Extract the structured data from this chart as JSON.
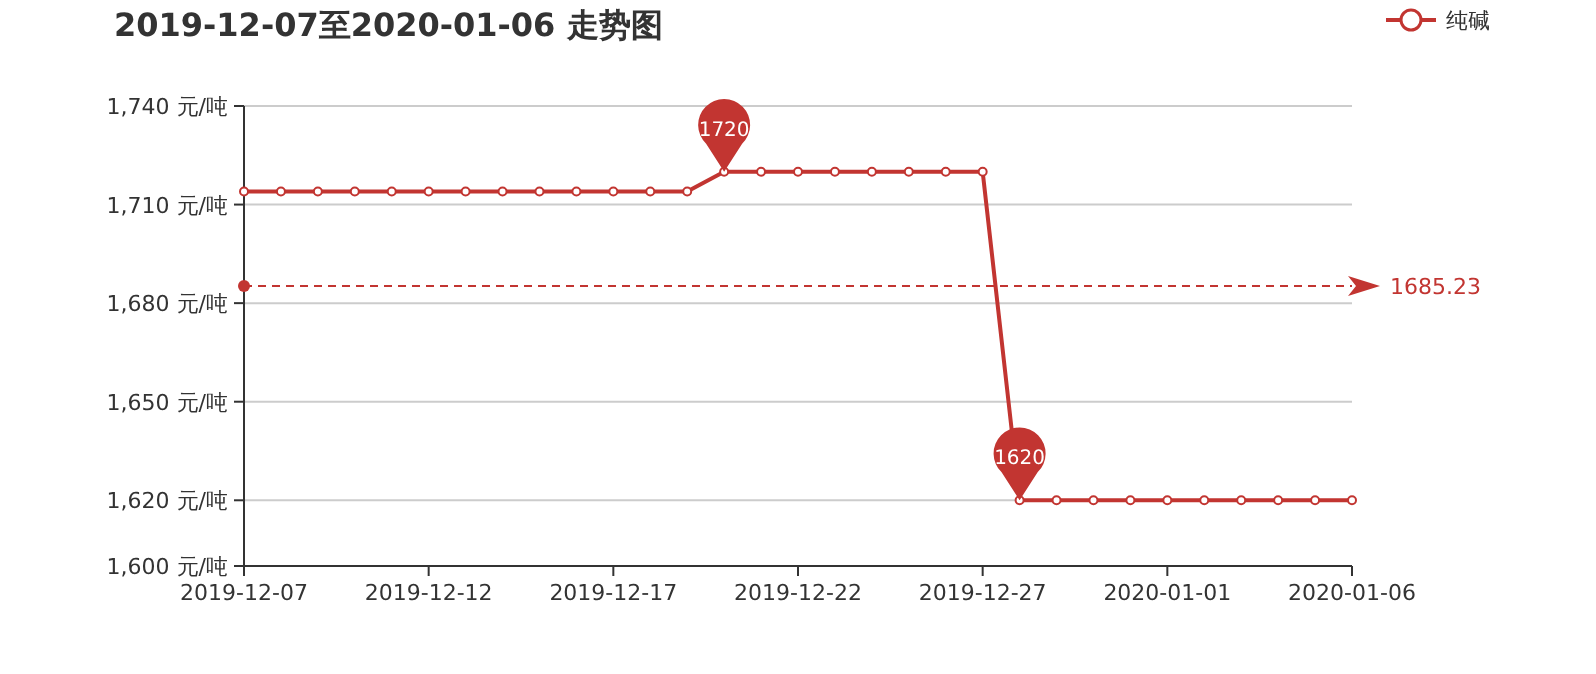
{
  "chart_data": {
    "type": "line",
    "title": "2019-12-07至2020-01-06 走势图",
    "x": [
      "2019-12-07",
      "2019-12-08",
      "2019-12-09",
      "2019-12-10",
      "2019-12-11",
      "2019-12-12",
      "2019-12-13",
      "2019-12-14",
      "2019-12-15",
      "2019-12-16",
      "2019-12-17",
      "2019-12-18",
      "2019-12-19",
      "2019-12-20",
      "2019-12-21",
      "2019-12-22",
      "2019-12-23",
      "2019-12-24",
      "2019-12-25",
      "2019-12-26",
      "2019-12-27",
      "2019-12-28",
      "2019-12-29",
      "2019-12-30",
      "2019-12-31",
      "2020-01-01",
      "2020-01-02",
      "2020-01-03",
      "2020-01-04",
      "2020-01-05",
      "2020-01-06"
    ],
    "series": [
      {
        "name": "纯碱",
        "color": "#c23531",
        "values": [
          1714,
          1714,
          1714,
          1714,
          1714,
          1714,
          1714,
          1714,
          1714,
          1714,
          1714,
          1714,
          1714,
          1720,
          1720,
          1720,
          1720,
          1720,
          1720,
          1720,
          1720,
          1620,
          1620,
          1620,
          1620,
          1620,
          1620,
          1620,
          1620,
          1620,
          1620
        ]
      }
    ],
    "xlim": [
      "2019-12-07",
      "2020-01-06"
    ],
    "xticks": [
      "2019-12-07",
      "2019-12-12",
      "2019-12-17",
      "2019-12-22",
      "2019-12-27",
      "2020-01-01",
      "2020-01-06"
    ],
    "ylim": [
      1600,
      1740
    ],
    "yticks": [
      {
        "value": 1600,
        "label": "1,600 元/吨"
      },
      {
        "value": 1620,
        "label": "1,620 元/吨"
      },
      {
        "value": 1650,
        "label": "1,650 元/吨"
      },
      {
        "value": 1680,
        "label": "1,680 元/吨"
      },
      {
        "value": 1710,
        "label": "1,710 元/吨"
      },
      {
        "value": 1740,
        "label": "1,740 元/吨"
      }
    ],
    "ref_lines": [
      {
        "axis": "y",
        "value": 1685.23,
        "label": "1685.23",
        "color": "#c23531",
        "line_style": "dashed"
      }
    ],
    "annotations": [
      {
        "text": "1720",
        "x": "2019-12-20",
        "y": 1720
      },
      {
        "text": "1620",
        "x": "2019-12-28",
        "y": 1620
      }
    ],
    "grid": "y",
    "legend": "top right",
    "marker": "circle",
    "line_style": "solid"
  }
}
